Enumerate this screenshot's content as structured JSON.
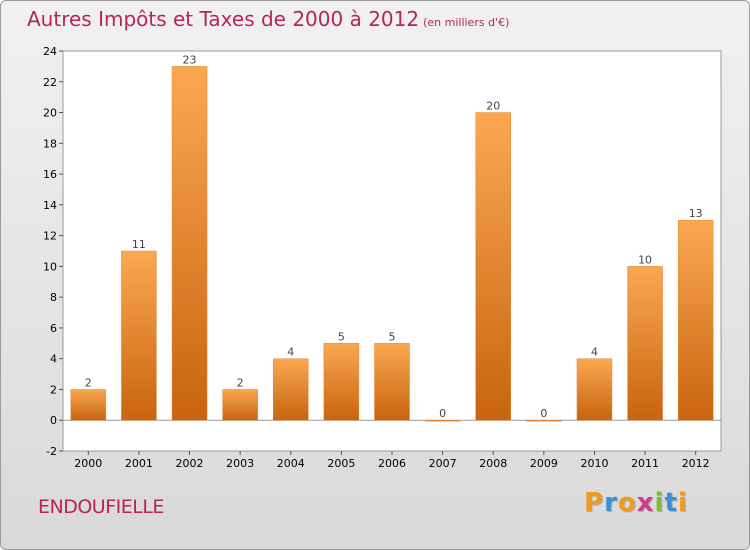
{
  "chart_data": {
    "type": "bar",
    "title": "Autres Impôts et Taxes de 2000 à 2012",
    "unit": "(en milliers d'€)",
    "categories": [
      "2000",
      "2001",
      "2002",
      "2003",
      "2004",
      "2005",
      "2006",
      "2007",
      "2008",
      "2009",
      "2010",
      "2011",
      "2012"
    ],
    "values": [
      2,
      11,
      23,
      2,
      4,
      5,
      5,
      0,
      20,
      0,
      4,
      10,
      13
    ],
    "ylim": [
      -2,
      24
    ],
    "yticks": [
      -2,
      0,
      2,
      4,
      6,
      8,
      10,
      12,
      14,
      16,
      18,
      20,
      22,
      24
    ],
    "grid": false,
    "legend": "none",
    "colors": {
      "bar_light": "#f9a552",
      "bar_dark": "#c96412",
      "title": "#b7245c"
    }
  },
  "footer": {
    "commune": "ENDOUFIELLE",
    "brand_letters": [
      "P",
      "r",
      "o",
      "x",
      "i",
      "t",
      "i"
    ],
    "brand_colors": [
      "#f39a1b",
      "#3a8fd6",
      "#f39a1b",
      "#d23a8c",
      "#84b83b",
      "#3a8fd6",
      "#f39a1b"
    ]
  }
}
